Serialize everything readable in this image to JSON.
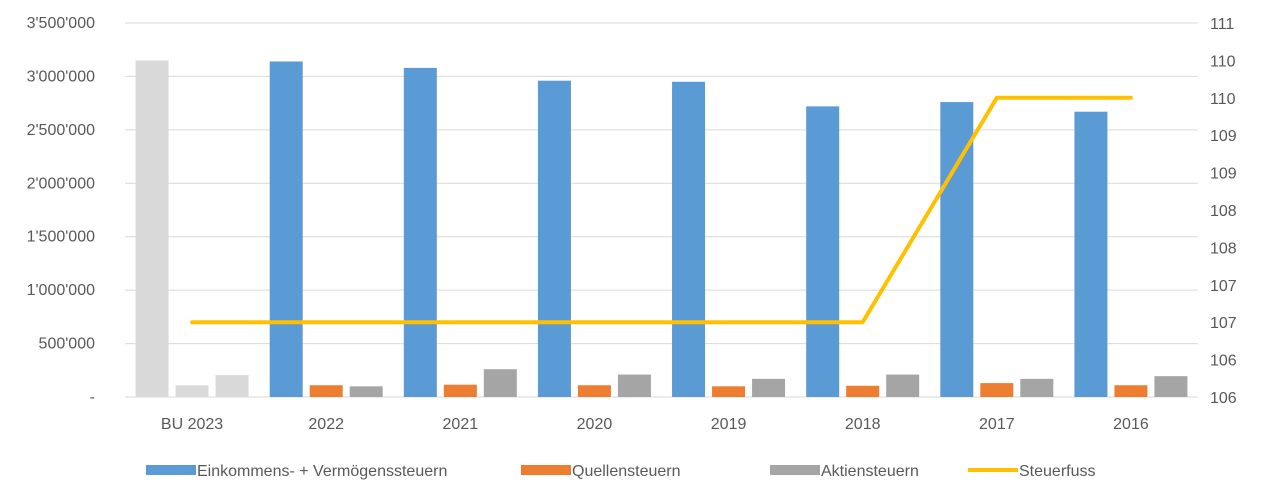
{
  "chart_data": {
    "type": "bar",
    "categories": [
      "BU 2023",
      "2022",
      "2021",
      "2020",
      "2019",
      "2018",
      "2017",
      "2016"
    ],
    "series": [
      {
        "name": "Einkommens- + Vermögenssteuern",
        "values": [
          3150000,
          3140000,
          3080000,
          2960000,
          2950000,
          2720000,
          2760000,
          2670000
        ],
        "color": "#5B9BD5",
        "first_color": "#D9D9D9",
        "axis": "left"
      },
      {
        "name": "Quellensteuern",
        "values": [
          110000,
          110000,
          115000,
          110000,
          100000,
          105000,
          130000,
          110000
        ],
        "color": "#ED7D31",
        "first_color": "#D9D9D9",
        "axis": "left"
      },
      {
        "name": "Aktiensteuern",
        "values": [
          205000,
          100000,
          260000,
          210000,
          170000,
          210000,
          170000,
          195000
        ],
        "color": "#A5A5A5",
        "first_color": "#D9D9D9",
        "axis": "left"
      },
      {
        "name": "Steuerfuss",
        "type": "line",
        "values": [
          107,
          107,
          107,
          107,
          107,
          107,
          110,
          110
        ],
        "color": "#FFC000",
        "axis": "right"
      }
    ],
    "y_left": {
      "range": [
        0,
        3500000
      ],
      "ticks": [
        0,
        500000,
        1000000,
        1500000,
        2000000,
        2500000,
        3000000,
        3500000
      ],
      "tick_labels": [
        "-",
        "500'000",
        "1'000'000",
        "1'500'000",
        "2'000'000",
        "2'500'000",
        "3'000'000",
        "3'500'000"
      ]
    },
    "y_right": {
      "range": [
        106,
        111
      ],
      "tick_labels": [
        "106",
        "106",
        "107",
        "107",
        "108",
        "108",
        "109",
        "109",
        "110",
        "110",
        "111"
      ]
    },
    "grid": true,
    "legend_position": "bottom",
    "gridline_color": "#D9D9D9"
  }
}
